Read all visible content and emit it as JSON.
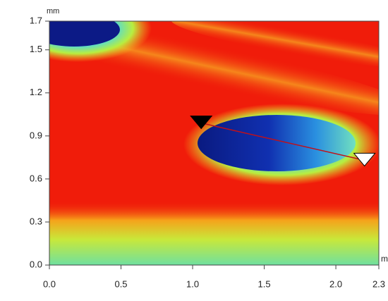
{
  "chart_data": {
    "type": "surface-map",
    "x_label": "m",
    "y_label": "mm",
    "xlim": [
      0,
      2.3
    ],
    "ylim": [
      0,
      1.7
    ],
    "xticks": [
      {
        "value": 0,
        "label": "0.0"
      },
      0.5,
      {
        "value": 1,
        "label": "1.0"
      },
      1.5,
      {
        "value": 2,
        "label": "2.0"
      },
      2.3
    ],
    "yticks": [
      {
        "value": 0,
        "label": "0.0"
      },
      0.3,
      0.6,
      0.9,
      1.2,
      1.5,
      1.7
    ],
    "profile": {
      "color": "#c0101a",
      "x": [
        1.06,
        2.2
      ],
      "y": [
        0.99,
        0.73
      ]
    }
  }
}
